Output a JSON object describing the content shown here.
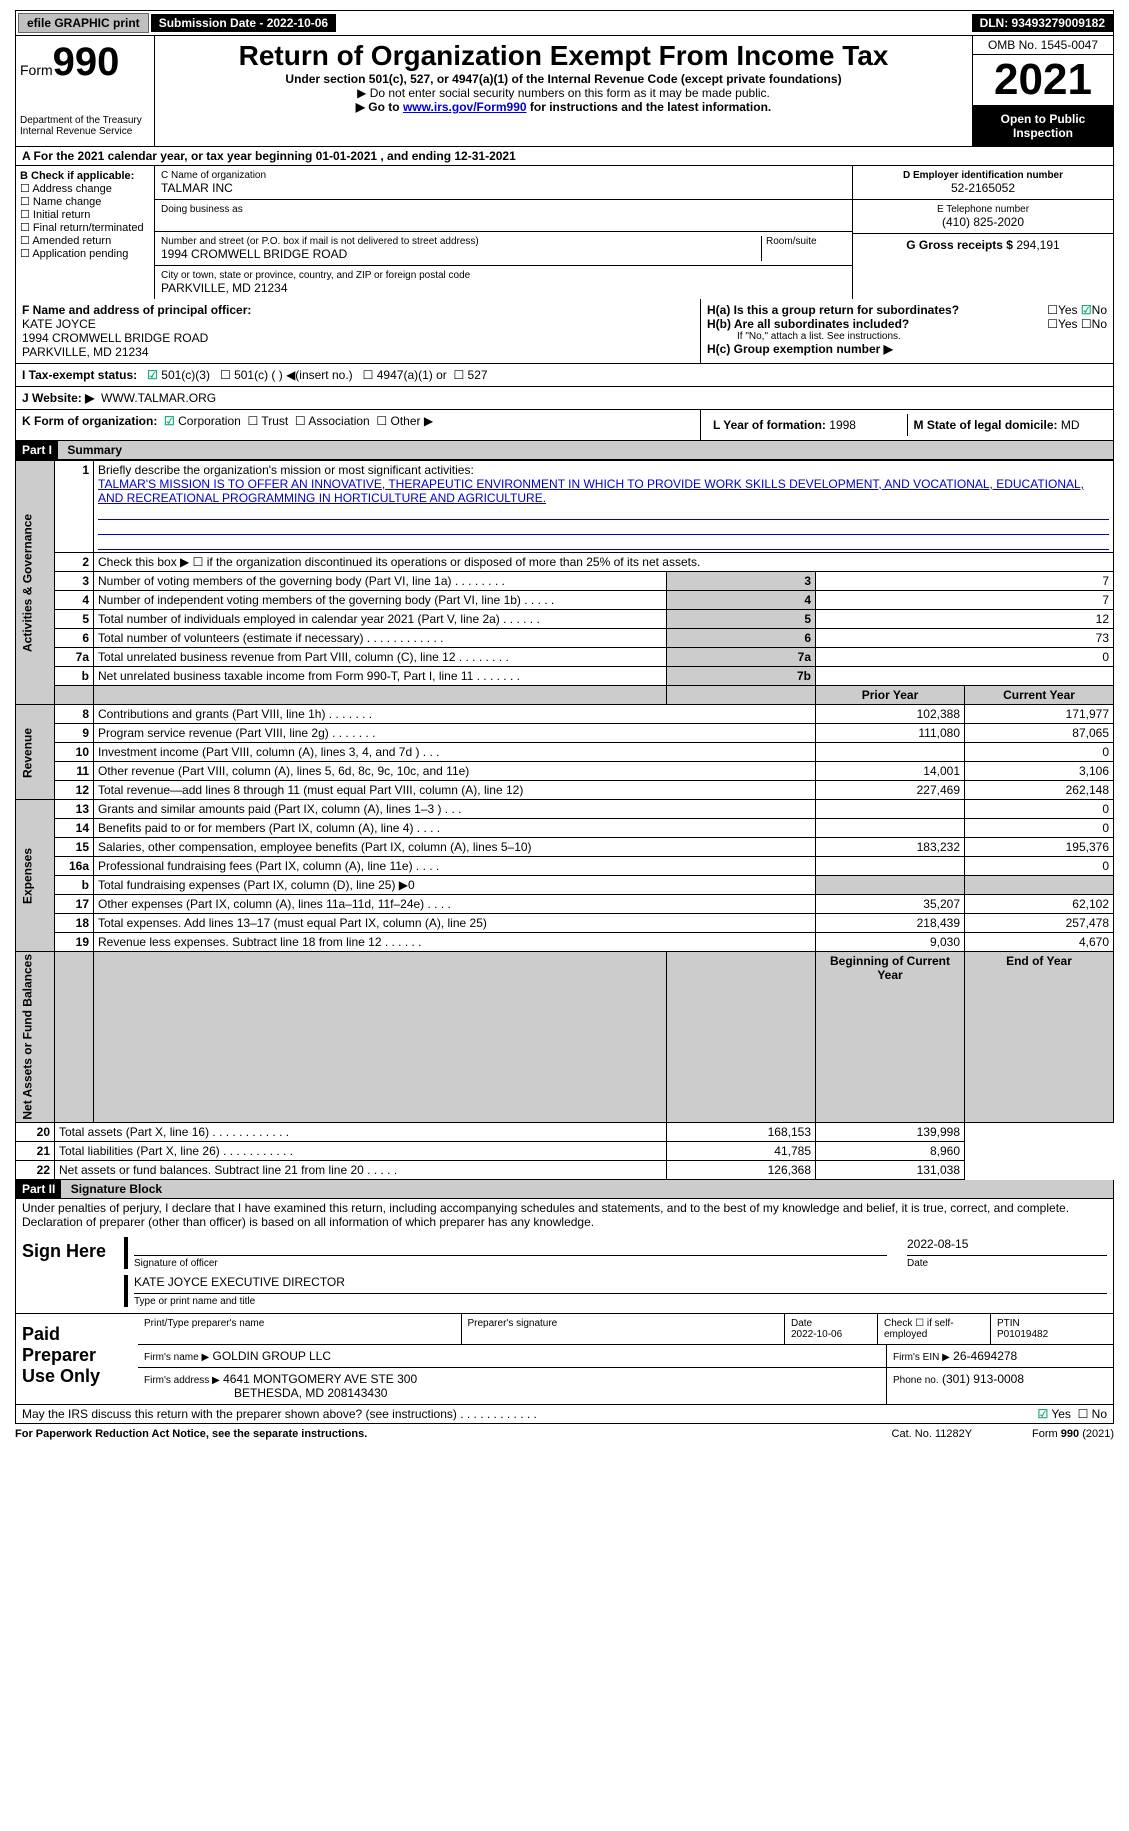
{
  "top": {
    "efile": "efile GRAPHIC print",
    "submission_label": "Submission Date - 2022-10-06",
    "dln_label": "DLN: 93493279009182"
  },
  "header": {
    "form_prefix": "Form",
    "form_no": "990",
    "dept": "Department of the Treasury\nInternal Revenue Service",
    "title": "Return of Organization Exempt From Income Tax",
    "sub1": "Under section 501(c), 527, or 4947(a)(1) of the Internal Revenue Code (except private foundations)",
    "sub2": "▶ Do not enter social security numbers on this form as it may be made public.",
    "sub3_pre": "▶ Go to ",
    "sub3_link": "www.irs.gov/Form990",
    "sub3_post": " for instructions and the latest information.",
    "omb": "OMB No. 1545-0047",
    "year": "2021",
    "open": "Open to Public Inspection"
  },
  "rowA": "A For the 2021 calendar year, or tax year beginning 01-01-2021    , and ending 12-31-2021",
  "boxB": {
    "hdr": "B Check if applicable:",
    "i1": "Address change",
    "i2": "Name change",
    "i3": "Initial return",
    "i4": "Final return/terminated",
    "i5": "Amended return",
    "i6": "Application pending"
  },
  "boxC": {
    "lbl": "C Name of organization",
    "name": "TALMAR INC",
    "dba": "Doing business as",
    "addr_lbl": "Number and street (or P.O. box if mail is not delivered to street address)",
    "room": "Room/suite",
    "addr": "1994 CROMWELL BRIDGE ROAD",
    "city_lbl": "City or town, state or province, country, and ZIP or foreign postal code",
    "city": "PARKVILLE, MD  21234"
  },
  "boxD": {
    "lbl": "D Employer identification number",
    "val": "52-2165052"
  },
  "boxE": {
    "lbl": "E Telephone number",
    "val": "(410) 825-2020"
  },
  "boxG": {
    "lbl": "G Gross receipts $",
    "val": "294,191"
  },
  "boxF": {
    "lbl": "F  Name and address of principal officer:",
    "name": "KATE JOYCE",
    "addr1": "1994 CROMWELL BRIDGE ROAD",
    "addr2": "PARKVILLE, MD  21234"
  },
  "boxH": {
    "a": "H(a)  Is this a group return for subordinates?",
    "b": "H(b)  Are all subordinates included?",
    "bnote": "If \"No,\" attach a list. See instructions.",
    "c": "H(c)  Group exemption number ▶",
    "yes": "Yes",
    "no": "No"
  },
  "boxI": {
    "lbl": "I    Tax-exempt status:",
    "o1": "501(c)(3)",
    "o2": "501(c) (  ) ◀(insert no.)",
    "o3": "4947(a)(1) or",
    "o4": "527"
  },
  "boxJ": {
    "lbl": "J   Website: ▶",
    "val": "WWW.TALMAR.ORG"
  },
  "boxK": {
    "lbl": "K Form of organization:",
    "o1": "Corporation",
    "o2": "Trust",
    "o3": "Association",
    "o4": "Other ▶"
  },
  "boxL": {
    "lbl": "L Year of formation:",
    "val": "1998"
  },
  "boxM": {
    "lbl": "M State of legal domicile:",
    "val": "MD"
  },
  "part1": {
    "hdr": "Part I",
    "title": "Summary"
  },
  "p1": {
    "l1": "Briefly describe the organization's mission or most significant activities:",
    "mission": "TALMAR'S MISSION IS TO OFFER AN INNOVATIVE, THERAPEUTIC ENVIRONMENT IN WHICH TO PROVIDE WORK SKILLS DEVELOPMENT, AND VOCATIONAL, EDUCATIONAL, AND RECREATIONAL PROGRAMMING IN HORTICULTURE AND AGRICULTURE.",
    "l2": "Check this box ▶ ☐  if the organization discontinued its operations or disposed of more than 25% of its net assets.",
    "l3": "Number of voting members of the governing body (Part VI, line 1a)   .     .     .     .     .     .     .     .",
    "l4": "Number of independent voting members of the governing body (Part VI, line 1b)  .     .     .     .     .",
    "l5": "Total number of individuals employed in calendar year 2021 (Part V, line 2a)  .     .     .     .     .     .",
    "l6": "Total number of volunteers (estimate if necessary)    .     .     .     .     .     .     .     .     .     .     .     .",
    "l7a": "Total unrelated business revenue from Part VIII, column (C), line 12   .     .     .     .     .     .     .     .",
    "l7b": "Net unrelated business taxable income from Form 990-T, Part I, line 11  .     .     .     .     .     .     .",
    "v3": "7",
    "v4": "7",
    "v5": "12",
    "v6": "73",
    "v7a": "0",
    "v7b": ""
  },
  "p1b": {
    "prior": "Prior Year",
    "curr": "Current Year",
    "rows": [
      {
        "n": "8",
        "d": "Contributions and grants (Part VIII, line 1h)    .     .     .     .     .     .     .",
        "p": "102,388",
        "c": "171,977"
      },
      {
        "n": "9",
        "d": "Program service revenue (Part VIII, line 2g)   .     .     .     .     .     .     .",
        "p": "111,080",
        "c": "87,065"
      },
      {
        "n": "10",
        "d": "Investment income (Part VIII, column (A), lines 3, 4, and 7d )    .     .     .",
        "p": "",
        "c": "0"
      },
      {
        "n": "11",
        "d": "Other revenue (Part VIII, column (A), lines 5, 6d, 8c, 9c, 10c, and 11e)",
        "p": "14,001",
        "c": "3,106"
      },
      {
        "n": "12",
        "d": "Total revenue—add lines 8 through 11 (must equal Part VIII, column (A), line 12)",
        "p": "227,469",
        "c": "262,148"
      },
      {
        "n": "13",
        "d": "Grants and similar amounts paid (Part IX, column (A), lines 1–3 )  .     .     .",
        "p": "",
        "c": "0"
      },
      {
        "n": "14",
        "d": "Benefits paid to or for members (Part IX, column (A), line 4)  .     .     .     .",
        "p": "",
        "c": "0"
      },
      {
        "n": "15",
        "d": "Salaries, other compensation, employee benefits (Part IX, column (A), lines 5–10)",
        "p": "183,232",
        "c": "195,376"
      },
      {
        "n": "16a",
        "d": "Professional fundraising fees (Part IX, column (A), line 11e)   .     .     .     .",
        "p": "",
        "c": "0"
      },
      {
        "n": "b",
        "d": "Total fundraising expenses (Part IX, column (D), line 25) ▶0",
        "p": "gray",
        "c": "gray"
      },
      {
        "n": "17",
        "d": "Other expenses (Part IX, column (A), lines 11a–11d, 11f–24e)   .     .     .     .",
        "p": "35,207",
        "c": "62,102"
      },
      {
        "n": "18",
        "d": "Total expenses. Add lines 13–17 (must equal Part IX, column (A), line 25)",
        "p": "218,439",
        "c": "257,478"
      },
      {
        "n": "19",
        "d": "Revenue less expenses. Subtract line 18 from line 12  .     .     .     .     .     .",
        "p": "9,030",
        "c": "4,670"
      }
    ],
    "beg": "Beginning of Current Year",
    "end": "End of Year",
    "rows2": [
      {
        "n": "20",
        "d": "Total assets (Part X, line 16)  .     .     .     .     .     .     .     .     .     .     .     .",
        "p": "168,153",
        "c": "139,998"
      },
      {
        "n": "21",
        "d": "Total liabilities (Part X, line 26)  .     .     .     .     .     .     .     .     .     .     .",
        "p": "41,785",
        "c": "8,960"
      },
      {
        "n": "22",
        "d": "Net assets or fund balances. Subtract line 21 from line 20  .     .     .     .     .",
        "p": "126,368",
        "c": "131,038"
      }
    ]
  },
  "side": {
    "ag": "Activities & Governance",
    "rev": "Revenue",
    "exp": "Expenses",
    "na": "Net Assets or Fund Balances"
  },
  "part2": {
    "hdr": "Part II",
    "title": "Signature Block"
  },
  "sigtext": "Under penalties of perjury, I declare that I have examined this return, including accompanying schedules and statements, and to the best of my knowledge and belief, it is true, correct, and complete. Declaration of preparer (other than officer) is based on all information of which preparer has any knowledge.",
  "sign": {
    "here": "Sign Here",
    "sigoff": "Signature of officer",
    "date": "Date",
    "dateval": "2022-08-15",
    "name": "KATE JOYCE  EXECUTIVE DIRECTOR",
    "typeline": "Type or print name and title"
  },
  "paid": {
    "lbl": "Paid Preparer Use Only",
    "c1": "Print/Type preparer's name",
    "c2": "Preparer's signature",
    "c3": "Date",
    "c3v": "2022-10-06",
    "c4": "Check ☐ if self-employed",
    "c5": "PTIN",
    "c5v": "P01019482",
    "firm": "Firm's name    ▶",
    "firmv": "GOLDIN GROUP LLC",
    "ein": "Firm's EIN ▶",
    "einv": "26-4694278",
    "addr": "Firm's address ▶",
    "addrv": "4641 MONTGOMERY AVE STE 300",
    "addrv2": "BETHESDA, MD  208143430",
    "phone": "Phone no.",
    "phonev": "(301) 913-0008"
  },
  "discuss": "May the IRS discuss this return with the preparer shown above? (see instructions)    .     .     .     .     .     .     .     .     .     .     .     .",
  "foot": {
    "l": "For Paperwork Reduction Act Notice, see the separate instructions.",
    "m": "Cat. No. 11282Y",
    "r": "Form 990 (2021)"
  }
}
